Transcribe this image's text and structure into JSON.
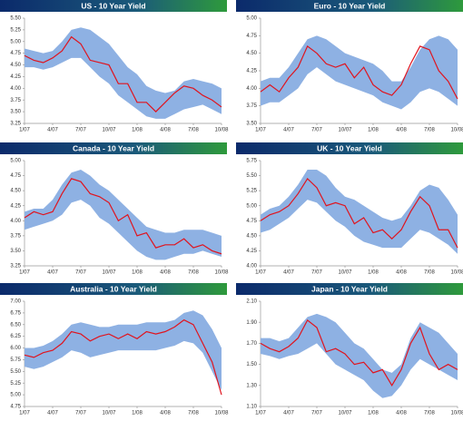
{
  "chart_data": [
    {
      "type": "line",
      "title": "US - 10 Year Yield",
      "categories": [
        "1/07",
        null,
        null,
        "4/07",
        null,
        null,
        "7/07",
        null,
        null,
        "10/07",
        null,
        null,
        "1/08",
        null,
        null,
        "4/08",
        null,
        null,
        "7/08",
        null,
        null,
        "10/08"
      ],
      "ylim": [
        3.25,
        5.5
      ],
      "yticks": [
        3.25,
        {
          "value": 3.5,
          "label": "3.50"
        },
        3.75,
        {
          "value": 4,
          "label": "4.00"
        },
        4.25,
        {
          "value": 4.5,
          "label": "4.50"
        },
        4.75,
        {
          "value": 5,
          "label": "5.00"
        },
        5.25,
        {
          "value": 5.5,
          "label": "5.50"
        }
      ],
      "band": {
        "color": "#8eb1e3",
        "upper": [
          4.85,
          4.8,
          4.75,
          4.8,
          5.0,
          5.25,
          5.3,
          5.25,
          5.1,
          4.95,
          4.7,
          4.45,
          4.3,
          4.05,
          3.95,
          3.9,
          3.95,
          4.15,
          4.2,
          4.15,
          4.1,
          4.0
        ],
        "lower": [
          4.45,
          4.45,
          4.4,
          4.45,
          4.55,
          4.65,
          4.65,
          4.45,
          4.25,
          4.1,
          3.85,
          3.7,
          3.55,
          3.4,
          3.35,
          3.35,
          3.45,
          3.55,
          3.6,
          3.65,
          3.55,
          3.45
        ]
      },
      "series": [
        {
          "color": "#e0141e",
          "values": [
            4.7,
            4.6,
            4.55,
            4.65,
            4.8,
            5.1,
            4.95,
            4.6,
            4.55,
            4.5,
            4.1,
            4.1,
            3.7,
            3.7,
            3.5,
            3.7,
            3.9,
            4.05,
            4.0,
            3.85,
            3.75,
            3.6
          ]
        }
      ]
    },
    {
      "type": "line",
      "title": "Euro - 10 Year Yield",
      "categories": [
        "1/07",
        null,
        null,
        "4/07",
        null,
        null,
        "7/07",
        null,
        null,
        "10/07",
        null,
        null,
        "1/08",
        null,
        null,
        "4/08",
        null,
        null,
        "7/08",
        null,
        null,
        "10/08"
      ],
      "ylim": [
        3.5,
        5.0
      ],
      "yticks": [
        {
          "value": 3.5,
          "label": "3.50"
        },
        3.75,
        {
          "value": 4,
          "label": "4.00"
        },
        4.25,
        {
          "value": 4.5,
          "label": "4.50"
        },
        4.75,
        {
          "value": 5,
          "label": "5.00"
        }
      ],
      "band": {
        "color": "#8eb1e3",
        "upper": [
          4.1,
          4.15,
          4.15,
          4.3,
          4.5,
          4.7,
          4.75,
          4.7,
          4.6,
          4.5,
          4.45,
          4.4,
          4.35,
          4.25,
          4.1,
          4.1,
          4.3,
          4.55,
          4.7,
          4.75,
          4.7,
          4.55
        ],
        "lower": [
          3.75,
          3.8,
          3.8,
          3.9,
          4.0,
          4.2,
          4.3,
          4.2,
          4.1,
          4.05,
          4.0,
          3.95,
          3.9,
          3.8,
          3.75,
          3.7,
          3.8,
          3.95,
          4.0,
          3.95,
          3.85,
          3.75
        ]
      },
      "series": [
        {
          "color": "#e0141e",
          "values": [
            3.95,
            4.05,
            3.95,
            4.15,
            4.3,
            4.6,
            4.5,
            4.35,
            4.3,
            4.35,
            4.15,
            4.3,
            4.05,
            3.95,
            3.9,
            4.05,
            4.35,
            4.6,
            4.55,
            4.25,
            4.1,
            3.85
          ]
        }
      ]
    },
    {
      "type": "line",
      "title": "Canada - 10 Year Yield",
      "categories": [
        "1/07",
        null,
        null,
        "4/07",
        null,
        null,
        "7/07",
        null,
        null,
        "10/07",
        null,
        null,
        "1/08",
        null,
        null,
        "4/08",
        null,
        null,
        "7/08",
        null,
        null,
        "10/08"
      ],
      "ylim": [
        3.25,
        5.0
      ],
      "yticks": [
        3.25,
        {
          "value": 3.5,
          "label": "3.50"
        },
        3.75,
        {
          "value": 4,
          "label": "4.00"
        },
        4.25,
        {
          "value": 4.5,
          "label": "4.50"
        },
        4.75,
        {
          "value": 5,
          "label": "5.00"
        }
      ],
      "band": {
        "color": "#8eb1e3",
        "upper": [
          4.15,
          4.2,
          4.2,
          4.35,
          4.6,
          4.8,
          4.85,
          4.75,
          4.6,
          4.5,
          4.35,
          4.2,
          4.05,
          3.9,
          3.85,
          3.8,
          3.8,
          3.85,
          3.85,
          3.85,
          3.8,
          3.75
        ],
        "lower": [
          3.85,
          3.9,
          3.95,
          4.0,
          4.1,
          4.3,
          4.35,
          4.25,
          4.05,
          3.95,
          3.8,
          3.65,
          3.5,
          3.4,
          3.35,
          3.35,
          3.4,
          3.45,
          3.45,
          3.5,
          3.45,
          3.4
        ]
      },
      "series": [
        {
          "color": "#e0141e",
          "values": [
            4.05,
            4.15,
            4.1,
            4.15,
            4.45,
            4.7,
            4.65,
            4.45,
            4.4,
            4.3,
            4.0,
            4.1,
            3.75,
            3.8,
            3.55,
            3.6,
            3.6,
            3.7,
            3.55,
            3.6,
            3.5,
            3.45
          ]
        }
      ]
    },
    {
      "type": "line",
      "title": "UK - 10 Year Yield",
      "categories": [
        "1/07",
        null,
        null,
        "4/07",
        null,
        null,
        "7/07",
        null,
        null,
        "10/07",
        null,
        null,
        "1/08",
        null,
        null,
        "4/08",
        null,
        null,
        "7/08",
        null,
        null,
        "10/08"
      ],
      "ylim": [
        4.0,
        5.75
      ],
      "yticks": [
        {
          "value": 4,
          "label": "4.00"
        },
        4.25,
        {
          "value": 4.5,
          "label": "4.50"
        },
        4.75,
        {
          "value": 5,
          "label": "5.00"
        },
        5.25,
        {
          "value": 5.5,
          "label": "5.50"
        },
        5.75
      ],
      "band": {
        "color": "#8eb1e3",
        "upper": [
          4.85,
          4.95,
          5.0,
          5.15,
          5.35,
          5.6,
          5.6,
          5.5,
          5.3,
          5.15,
          5.1,
          5.0,
          4.9,
          4.8,
          4.75,
          4.8,
          5.0,
          5.25,
          5.35,
          5.3,
          5.1,
          4.85
        ],
        "lower": [
          4.55,
          4.6,
          4.7,
          4.8,
          4.95,
          5.1,
          5.05,
          4.9,
          4.75,
          4.65,
          4.5,
          4.4,
          4.35,
          4.3,
          4.3,
          4.3,
          4.45,
          4.6,
          4.55,
          4.45,
          4.35,
          4.2
        ]
      },
      "series": [
        {
          "color": "#e0141e",
          "values": [
            4.75,
            4.85,
            4.9,
            5.0,
            5.2,
            5.45,
            5.3,
            5.0,
            5.05,
            5.0,
            4.7,
            4.8,
            4.55,
            4.6,
            4.45,
            4.6,
            4.9,
            5.15,
            5.0,
            4.6,
            4.6,
            4.3
          ]
        }
      ]
    },
    {
      "type": "line",
      "title": "Australia - 10 Year Yield",
      "categories": [
        "1/07",
        null,
        null,
        "4/07",
        null,
        null,
        "7/07",
        null,
        null,
        "10/07",
        null,
        null,
        "1/08",
        null,
        null,
        "4/08",
        null,
        null,
        "7/08",
        null,
        null,
        "10/08"
      ],
      "ylim": [
        4.75,
        7.0
      ],
      "yticks": [
        4.75,
        {
          "value": 5,
          "label": "5.00"
        },
        5.25,
        {
          "value": 5.5,
          "label": "5.50"
        },
        5.75,
        {
          "value": 6,
          "label": "6.00"
        },
        6.25,
        {
          "value": 6.5,
          "label": "6.50"
        },
        6.75,
        {
          "value": 7,
          "label": "7.00"
        }
      ],
      "band": {
        "color": "#8eb1e3",
        "upper": [
          6.0,
          6.0,
          6.05,
          6.15,
          6.3,
          6.5,
          6.55,
          6.5,
          6.45,
          6.45,
          6.5,
          6.5,
          6.5,
          6.55,
          6.55,
          6.55,
          6.6,
          6.75,
          6.8,
          6.7,
          6.4,
          6.0
        ],
        "lower": [
          5.6,
          5.55,
          5.6,
          5.7,
          5.8,
          5.95,
          5.9,
          5.8,
          5.85,
          5.9,
          5.95,
          5.95,
          5.95,
          5.95,
          5.95,
          6.0,
          6.05,
          6.15,
          6.1,
          5.9,
          5.5,
          5.1
        ]
      },
      "series": [
        {
          "color": "#e0141e",
          "values": [
            5.85,
            5.8,
            5.9,
            5.95,
            6.1,
            6.35,
            6.3,
            6.15,
            6.25,
            6.3,
            6.2,
            6.3,
            6.2,
            6.35,
            6.3,
            6.35,
            6.45,
            6.6,
            6.5,
            6.1,
            5.7,
            5.0
          ]
        }
      ]
    },
    {
      "type": "line",
      "title": "Japan - 10 Year Yield",
      "categories": [
        "1/07",
        null,
        null,
        "4/07",
        null,
        null,
        "7/07",
        null,
        null,
        "10/07",
        null,
        null,
        "1/08",
        null,
        null,
        "4/08",
        null,
        null,
        "7/08",
        null,
        null,
        "10/08"
      ],
      "ylim": [
        1.1,
        2.1
      ],
      "yticks": [
        {
          "value": 1.1,
          "label": "1.10"
        },
        {
          "value": 1.3,
          "label": "1.30"
        },
        {
          "value": 1.5,
          "label": "1.50"
        },
        {
          "value": 1.7,
          "label": "1.70"
        },
        {
          "value": 1.9,
          "label": "1.90"
        },
        {
          "value": 2.1,
          "label": "2.10"
        }
      ],
      "band": {
        "color": "#8eb1e3",
        "upper": [
          1.75,
          1.75,
          1.72,
          1.75,
          1.85,
          1.95,
          1.98,
          1.95,
          1.9,
          1.8,
          1.7,
          1.65,
          1.55,
          1.45,
          1.42,
          1.5,
          1.75,
          1.9,
          1.85,
          1.8,
          1.7,
          1.6
        ],
        "lower": [
          1.6,
          1.58,
          1.55,
          1.58,
          1.6,
          1.65,
          1.7,
          1.6,
          1.5,
          1.45,
          1.4,
          1.35,
          1.25,
          1.18,
          1.2,
          1.3,
          1.45,
          1.55,
          1.5,
          1.45,
          1.4,
          1.35
        ]
      },
      "series": [
        {
          "color": "#e0141e",
          "values": [
            1.7,
            1.65,
            1.62,
            1.67,
            1.75,
            1.92,
            1.85,
            1.62,
            1.65,
            1.6,
            1.5,
            1.52,
            1.42,
            1.45,
            1.3,
            1.45,
            1.7,
            1.85,
            1.6,
            1.45,
            1.5,
            1.45
          ]
        }
      ]
    }
  ]
}
